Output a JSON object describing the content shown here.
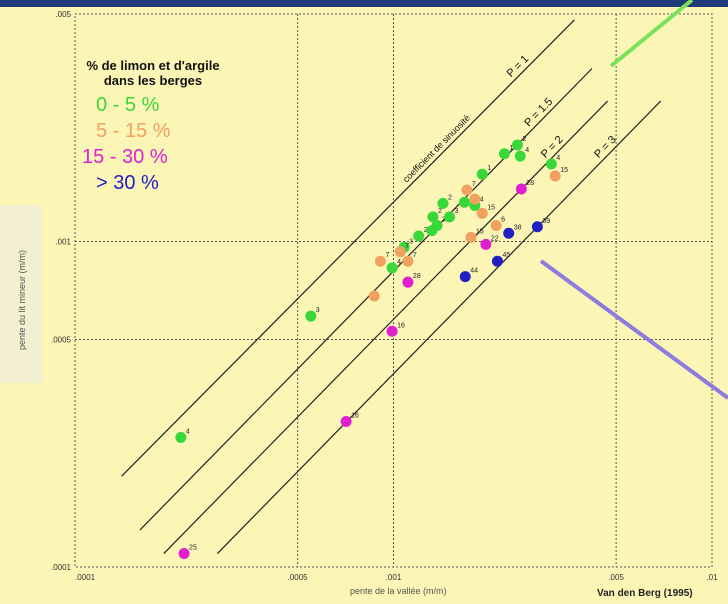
{
  "chart_data": {
    "type": "scatter",
    "xlabel": "pente de la vallée (m/m)",
    "ylabel": "pente du lit mineur (m/m)",
    "x_scale": "log",
    "y_scale": "log",
    "xlim": [
      0.0001,
      0.01
    ],
    "ylim": [
      0.0001,
      0.005
    ],
    "x_ticks": [
      {
        "value": 0.0001,
        "label": ".0001"
      },
      {
        "value": 0.0005,
        "label": ".0005"
      },
      {
        "value": 0.001,
        "label": ".001"
      },
      {
        "value": 0.005,
        "label": ".005"
      },
      {
        "value": 0.01,
        "label": ".01"
      }
    ],
    "y_ticks": [
      {
        "value": 0.0001,
        "label": ".0001"
      },
      {
        "value": 0.0005,
        "label": ".0005"
      },
      {
        "value": 0.001,
        "label": ".001"
      },
      {
        "value": 0.005,
        "label": ".005"
      }
    ],
    "grid": "dashed",
    "credit": "Van den Berg (1995)",
    "legend_title": "% de limon et d'argile dans les berges",
    "series": [
      {
        "name": "0 - 5 %",
        "color": "#38d83a"
      },
      {
        "name": "5 - 15 %",
        "color": "#f0a060"
      },
      {
        "name": "15 - 30 %",
        "color": "#e020d0"
      },
      {
        "name": "> 30 %",
        "color": "#2020c0"
      }
    ],
    "sinuosity_lines": [
      {
        "label": "P = 1",
        "annotation": "coefficient de sinuosité",
        "x": [
          0.00014,
          0.0037
        ],
        "y": [
          0.00019,
          0.0048
        ]
      },
      {
        "label": "P = 1.5",
        "x": [
          0.00016,
          0.0042
        ],
        "y": [
          0.00013,
          0.0034
        ]
      },
      {
        "label": "P = 2",
        "x": [
          0.00019,
          0.0047
        ],
        "y": [
          0.00011,
          0.0027
        ]
      },
      {
        "label": "P = 3",
        "x": [
          0.00028,
          0.0069
        ],
        "y": [
          0.00011,
          0.0027
        ]
      }
    ],
    "points": [
      {
        "x": 0.000215,
        "y": 0.00025,
        "series": 0,
        "label": "4"
      },
      {
        "x": 0.00055,
        "y": 0.00059,
        "series": 0,
        "label": "3"
      },
      {
        "x": 0.00099,
        "y": 0.00083,
        "series": 0,
        "label": "4"
      },
      {
        "x": 0.00108,
        "y": 0.00096,
        "series": 0,
        "label": "3"
      },
      {
        "x": 0.0012,
        "y": 0.00104,
        "series": 0,
        "label": "2"
      },
      {
        "x": 0.00132,
        "y": 0.00108,
        "series": 0,
        "label": "2"
      },
      {
        "x": 0.00133,
        "y": 0.00119,
        "series": 0,
        "label": "2"
      },
      {
        "x": 0.00137,
        "y": 0.00112,
        "series": 0,
        "label": "3"
      },
      {
        "x": 0.00143,
        "y": 0.00131,
        "series": 0,
        "label": "2"
      },
      {
        "x": 0.0015,
        "y": 0.00119,
        "series": 0,
        "label": "3"
      },
      {
        "x": 0.00167,
        "y": 0.00132,
        "series": 0,
        "label": ""
      },
      {
        "x": 0.0018,
        "y": 0.00129,
        "series": 0,
        "label": "4"
      },
      {
        "x": 0.0019,
        "y": 0.00161,
        "series": 0,
        "label": "1"
      },
      {
        "x": 0.00223,
        "y": 0.00186,
        "series": 0,
        "label": "1"
      },
      {
        "x": 0.00245,
        "y": 0.00198,
        "series": 0,
        "label": "2"
      },
      {
        "x": 0.0025,
        "y": 0.00183,
        "series": 0,
        "label": "4"
      },
      {
        "x": 0.00313,
        "y": 0.00173,
        "series": 0,
        "label": "4"
      },
      {
        "x": 0.00091,
        "y": 0.00087,
        "series": 1,
        "label": "7"
      },
      {
        "x": 0.00105,
        "y": 0.00093,
        "series": 1,
        "label": "7"
      },
      {
        "x": 0.00111,
        "y": 0.00087,
        "series": 1,
        "label": "7"
      },
      {
        "x": 0.00087,
        "y": 0.00068,
        "series": 1,
        "label": ""
      },
      {
        "x": 0.0017,
        "y": 0.00144,
        "series": 1,
        "label": "7"
      },
      {
        "x": 0.0018,
        "y": 0.00135,
        "series": 1,
        "label": ""
      },
      {
        "x": 0.0019,
        "y": 0.00122,
        "series": 1,
        "label": "15"
      },
      {
        "x": 0.00175,
        "y": 0.00103,
        "series": 1,
        "label": "15"
      },
      {
        "x": 0.0021,
        "y": 0.00112,
        "series": 1,
        "label": "6"
      },
      {
        "x": 0.00322,
        "y": 0.00159,
        "series": 1,
        "label": "15"
      },
      {
        "x": 0.00111,
        "y": 0.00075,
        "series": 2,
        "label": "28"
      },
      {
        "x": 0.00099,
        "y": 0.00053,
        "series": 2,
        "label": "16"
      },
      {
        "x": 0.00071,
        "y": 0.00028,
        "series": 2,
        "label": "16"
      },
      {
        "x": 0.00022,
        "y": 0.00011,
        "series": 2,
        "label": "25"
      },
      {
        "x": 0.00195,
        "y": 0.00098,
        "series": 2,
        "label": "22"
      },
      {
        "x": 0.00252,
        "y": 0.00145,
        "series": 2,
        "label": "28"
      },
      {
        "x": 0.00168,
        "y": 0.00078,
        "series": 3,
        "label": "44"
      },
      {
        "x": 0.00212,
        "y": 0.00087,
        "series": 3,
        "label": "45"
      },
      {
        "x": 0.0023,
        "y": 0.00106,
        "series": 3,
        "label": "38"
      },
      {
        "x": 0.00283,
        "y": 0.00111,
        "series": 3,
        "label": "39"
      }
    ]
  },
  "legend": {
    "title": "% de limon et d'argile dans les berges",
    "items": [
      "0 - 5 %",
      "5 - 15 %",
      "15 - 30 %",
      "> 30 %"
    ]
  }
}
